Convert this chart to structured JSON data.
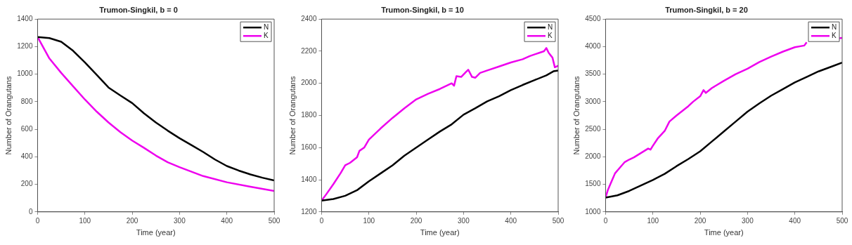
{
  "chart_data": [
    {
      "type": "line",
      "title": "Trumon-Singkil, b = 0",
      "xlabel": "Time (year)",
      "ylabel": "Number of Orangutans",
      "xlim": [
        0,
        500
      ],
      "xticks": [
        0,
        100,
        200,
        300,
        400,
        500
      ],
      "ylim": [
        0,
        1400
      ],
      "yticks": [
        0,
        200,
        400,
        600,
        800,
        1000,
        1200,
        1400
      ],
      "grid": false,
      "legend": "top right",
      "marker": "none",
      "line_style": "solid",
      "series": [
        {
          "name": "N",
          "color": "#000000",
          "x": [
            0,
            25,
            50,
            75,
            100,
            125,
            150,
            175,
            200,
            225,
            250,
            275,
            300,
            325,
            350,
            375,
            400,
            425,
            450,
            475,
            500
          ],
          "values": [
            1270,
            1262,
            1235,
            1170,
            1085,
            995,
            903,
            845,
            790,
            715,
            649,
            590,
            535,
            485,
            435,
            380,
            333,
            300,
            272,
            248,
            228
          ]
        },
        {
          "name": "K",
          "color": "#ee00ee",
          "x": [
            0,
            25,
            50,
            75,
            100,
            125,
            150,
            175,
            200,
            225,
            250,
            275,
            300,
            350,
            400,
            450,
            500
          ],
          "values": [
            1270,
            1114,
            1009,
            912,
            816,
            728,
            649,
            579,
            518,
            465,
            409,
            360,
            325,
            260,
            215,
            182,
            152
          ]
        }
      ]
    },
    {
      "type": "line",
      "title": "Trumon-Singkil, b = 10",
      "xlabel": "Time (year)",
      "ylabel": "Number of Orangutans",
      "xlim": [
        0,
        500
      ],
      "xticks": [
        0,
        100,
        200,
        300,
        400,
        500
      ],
      "ylim": [
        1200,
        2400
      ],
      "yticks": [
        1200,
        1400,
        1600,
        1800,
        2000,
        2200,
        2400
      ],
      "grid": false,
      "legend": "top right",
      "marker": "none",
      "line_style": "solid",
      "series": [
        {
          "name": "N",
          "color": "#000000",
          "x": [
            0,
            25,
            50,
            75,
            100,
            125,
            150,
            175,
            200,
            225,
            250,
            275,
            300,
            325,
            350,
            375,
            400,
            425,
            450,
            475,
            490,
            500
          ],
          "values": [
            1270,
            1280,
            1300,
            1335,
            1390,
            1440,
            1490,
            1550,
            1600,
            1650,
            1700,
            1745,
            1805,
            1845,
            1888,
            1920,
            1958,
            1990,
            2020,
            2050,
            2075,
            2080
          ]
        },
        {
          "name": "K",
          "color": "#ee00ee",
          "x": [
            0,
            10,
            25,
            40,
            50,
            60,
            75,
            80,
            90,
            100,
            125,
            150,
            175,
            200,
            225,
            250,
            275,
            280,
            285,
            295,
            305,
            310,
            318,
            325,
            335,
            350,
            375,
            400,
            425,
            440,
            460,
            470,
            475,
            480,
            488,
            493,
            500
          ],
          "values": [
            1270,
            1310,
            1373,
            1440,
            1490,
            1505,
            1540,
            1580,
            1600,
            1650,
            1720,
            1785,
            1845,
            1900,
            1935,
            1965,
            2000,
            1985,
            2045,
            2040,
            2070,
            2085,
            2040,
            2035,
            2065,
            2080,
            2105,
            2130,
            2150,
            2170,
            2190,
            2200,
            2220,
            2190,
            2160,
            2100,
            2110
          ]
        }
      ]
    },
    {
      "type": "line",
      "title": "Trumon-Singkil, b = 20",
      "xlabel": "Time (year)",
      "ylabel": "Number of Orangutans",
      "xlim": [
        0,
        500
      ],
      "xticks": [
        0,
        100,
        200,
        300,
        400,
        500
      ],
      "ylim": [
        1000,
        4500
      ],
      "yticks": [
        1000,
        1500,
        2000,
        2500,
        3000,
        3500,
        4000,
        4500
      ],
      "grid": false,
      "legend": "top right",
      "marker": "none",
      "line_style": "solid",
      "series": [
        {
          "name": "N",
          "color": "#000000",
          "x": [
            0,
            25,
            50,
            75,
            100,
            125,
            150,
            175,
            200,
            225,
            250,
            275,
            300,
            325,
            350,
            375,
            400,
            425,
            450,
            475,
            500
          ],
          "values": [
            1260,
            1300,
            1380,
            1480,
            1580,
            1690,
            1830,
            1960,
            2100,
            2280,
            2460,
            2640,
            2820,
            2970,
            3110,
            3230,
            3350,
            3450,
            3550,
            3630,
            3710
          ]
        },
        {
          "name": "K",
          "color": "#ee00ee",
          "x": [
            0,
            5,
            10,
            20,
            30,
            40,
            50,
            60,
            75,
            90,
            95,
            100,
            110,
            125,
            135,
            150,
            175,
            185,
            200,
            207,
            212,
            225,
            250,
            275,
            300,
            325,
            350,
            375,
            400,
            420,
            425,
            450,
            460,
            475,
            490,
            500
          ],
          "values": [
            1260,
            1400,
            1500,
            1700,
            1800,
            1900,
            1950,
            1990,
            2070,
            2150,
            2130,
            2200,
            2330,
            2470,
            2640,
            2750,
            2920,
            3000,
            3100,
            3210,
            3160,
            3250,
            3380,
            3500,
            3600,
            3720,
            3820,
            3910,
            3990,
            4020,
            4080,
            null,
            null,
            null,
            4150,
            4160
          ]
        }
      ]
    }
  ]
}
